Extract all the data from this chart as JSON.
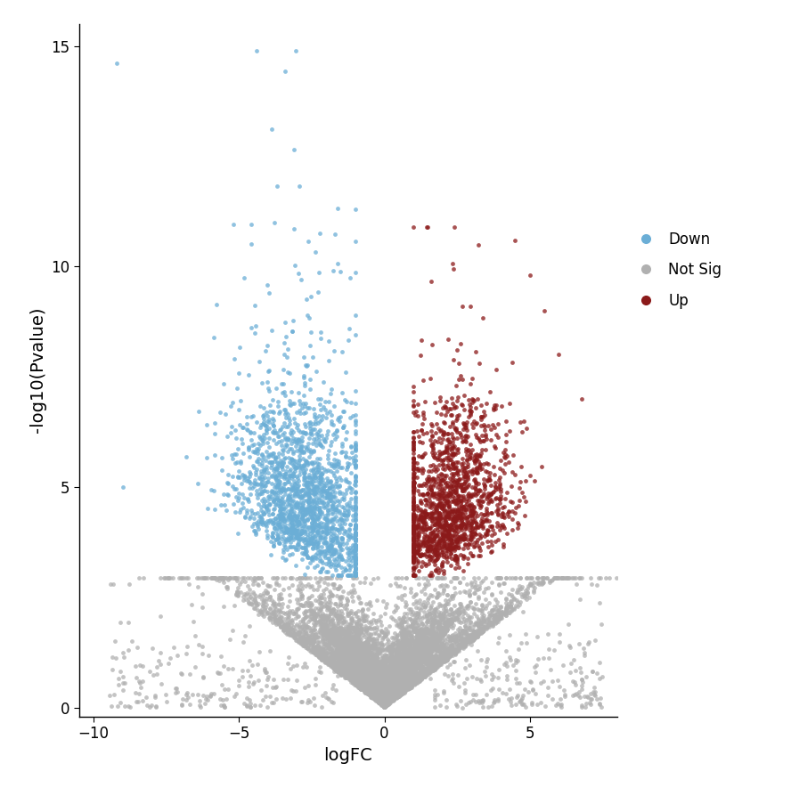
{
  "title": "",
  "xlabel": "logFC",
  "ylabel": "-log10(Pvalue)",
  "xlim": [
    -10.5,
    8
  ],
  "ylim": [
    -0.2,
    15.5
  ],
  "xticks": [
    -10,
    -5,
    0,
    5
  ],
  "yticks": [
    0,
    5,
    10,
    15
  ],
  "colors": {
    "down": "#6baed6",
    "not_sig": "#b0b0b0",
    "up": "#8b1a1a"
  },
  "legend_labels": [
    "Down",
    "Not Sig",
    "Up"
  ],
  "dot_size": 12,
  "alpha": 0.75,
  "seed": 42,
  "background_color": "#ffffff",
  "font_family": "DejaVu Sans"
}
